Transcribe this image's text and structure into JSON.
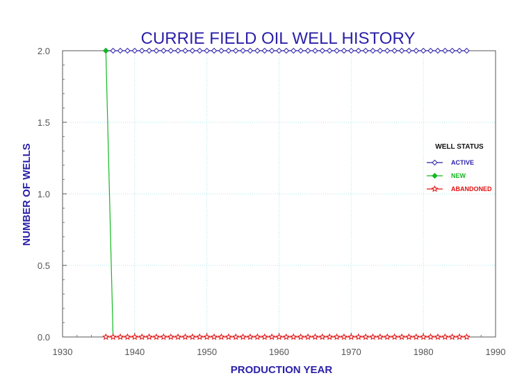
{
  "chart_data": {
    "type": "line",
    "title": "CURRIE FIELD OIL WELL HISTORY",
    "xlabel": "PRODUCTION YEAR",
    "ylabel": "NUMBER OF WELLS",
    "xlim": [
      1930,
      1990
    ],
    "ylim": [
      0,
      2
    ],
    "x_ticks": [
      "1930",
      "1940",
      "1950",
      "1960",
      "1970",
      "1980",
      "1990"
    ],
    "y_ticks": [
      "0.0",
      "0.5",
      "1.0",
      "1.5",
      "2.0"
    ],
    "grid": true,
    "legend_title": "WELL STATUS",
    "legend_position": "right",
    "series": [
      {
        "name": "ACTIVE",
        "color": "#2a1fa8",
        "marker": "diamond-open",
        "x_start": 1936,
        "x_end": 1986,
        "constant_value": 2
      },
      {
        "name": "NEW",
        "color": "#12b81f",
        "marker": "diamond-filled",
        "points": [
          [
            1936,
            2
          ],
          [
            1937,
            0
          ]
        ]
      },
      {
        "name": "ABANDONED",
        "color": "#e01010",
        "marker": "star-open",
        "x_start": 1936,
        "x_end": 1986,
        "constant_value": 0
      }
    ]
  }
}
